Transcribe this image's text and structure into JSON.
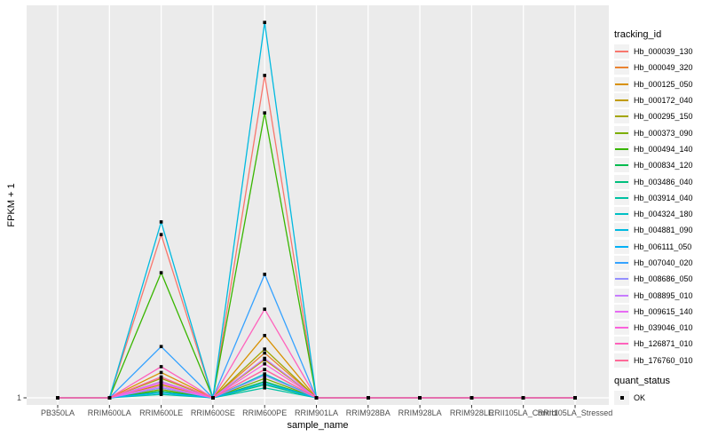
{
  "figure": {
    "background": "#FFFFFF",
    "panel_background": "#EBEBEB",
    "gridline_color": "#FFFFFF",
    "tick_color": "#333333",
    "axis_text_color": "#4D4D4D",
    "point_color": "#000000"
  },
  "axes": {
    "x_title": "sample_name",
    "y_title": "FPKM + 1",
    "y_tick_labels": [
      "1"
    ],
    "x_tick_labels": [
      "PB350LA",
      "RRIM600LA",
      "RRIM600LE",
      "RRIM600SE",
      "RRIM600PE",
      "RRIM901LA",
      "RRIM928BA",
      "RRIM928LA",
      "RRIM928LE",
      "RRII105LA_Control",
      "RRII105LA_Stressed"
    ]
  },
  "legend": {
    "tracking_title": "tracking_id",
    "quant_title": "quant_status",
    "quant_items": [
      {
        "label": "OK",
        "marker": "black-square"
      }
    ],
    "key_fill": "#F2F2F2"
  },
  "chart_data": {
    "type": "line",
    "title": "",
    "xlabel": "sample_name",
    "ylabel": "FPKM + 1",
    "yscale": "log10",
    "ytick_values": [
      1
    ],
    "ylim_log10": [
      0,
      1
    ],
    "grid": "major-white-on-gray",
    "legend_position": "right",
    "point_marker": {
      "shape": "square",
      "color": "#000000",
      "meaning": "quant_status OK"
    },
    "categories": [
      "PB350LA",
      "RRIM600LA",
      "RRIM600LE",
      "RRIM600SE",
      "RRIM600PE",
      "RRIM901LA",
      "RRIM928BA",
      "RRIM928LA",
      "RRIM928LE",
      "RRII105LA_Control",
      "RRII105LA_Stressed"
    ],
    "series": [
      {
        "name": "Hb_000039_130",
        "color": "#F8766D",
        "values": [
          1,
          1,
          2.6,
          1,
          6.6,
          1,
          1,
          1,
          1,
          1,
          1
        ]
      },
      {
        "name": "Hb_000049_320",
        "color": "#EA8331",
        "values": [
          1,
          1,
          1.1,
          1,
          1.3,
          1,
          1,
          1,
          1,
          1,
          1
        ]
      },
      {
        "name": "Hb_000125_050",
        "color": "#D89000",
        "values": [
          1,
          1,
          1.16,
          1,
          1.44,
          1,
          1,
          1,
          1,
          1,
          1
        ]
      },
      {
        "name": "Hb_000172_040",
        "color": "#C09B00",
        "values": [
          1,
          1,
          1.08,
          1,
          1.25,
          1,
          1,
          1,
          1,
          1,
          1
        ]
      },
      {
        "name": "Hb_000295_150",
        "color": "#A3A500",
        "values": [
          1,
          1,
          1.12,
          1,
          1.33,
          1,
          1,
          1,
          1,
          1,
          1
        ]
      },
      {
        "name": "Hb_000373_090",
        "color": "#7CAE00",
        "values": [
          1,
          1,
          1.05,
          1,
          1.12,
          1,
          1,
          1,
          1,
          1,
          1
        ]
      },
      {
        "name": "Hb_000494_140",
        "color": "#39B600",
        "values": [
          1,
          1,
          2.08,
          1,
          5.3,
          1,
          1,
          1,
          1,
          1,
          1
        ]
      },
      {
        "name": "Hb_000834_120",
        "color": "#00BB4E",
        "values": [
          1,
          1,
          1.04,
          1,
          1.1,
          1,
          1,
          1,
          1,
          1,
          1
        ]
      },
      {
        "name": "Hb_003486_040",
        "color": "#00BF7D",
        "values": [
          1,
          1,
          1.03,
          1,
          1.08,
          1,
          1,
          1,
          1,
          1,
          1
        ]
      },
      {
        "name": "Hb_003914_040",
        "color": "#00C1A3",
        "values": [
          1,
          1,
          1.02,
          1,
          1.06,
          1,
          1,
          1,
          1,
          1,
          1
        ]
      },
      {
        "name": "Hb_004324_180",
        "color": "#00BFC4",
        "values": [
          1,
          1,
          1.06,
          1,
          1.15,
          1,
          1,
          1,
          1,
          1,
          1
        ]
      },
      {
        "name": "Hb_004881_090",
        "color": "#00BAE0",
        "values": [
          1,
          1,
          2.8,
          1,
          9.0,
          1,
          1,
          1,
          1,
          1,
          1
        ]
      },
      {
        "name": "Hb_006111_050",
        "color": "#00B0F6",
        "values": [
          1,
          1,
          1.03,
          1,
          1.09,
          1,
          1,
          1,
          1,
          1,
          1
        ]
      },
      {
        "name": "Hb_007040_020",
        "color": "#35A2FF",
        "values": [
          1,
          1,
          1.35,
          1,
          2.06,
          1,
          1,
          1,
          1,
          1,
          1
        ]
      },
      {
        "name": "Hb_008686_050",
        "color": "#9590FF",
        "values": [
          1,
          1,
          1.06,
          1,
          1.14,
          1,
          1,
          1,
          1,
          1,
          1
        ]
      },
      {
        "name": "Hb_008895_010",
        "color": "#C77CFF",
        "values": [
          1,
          1,
          1.1,
          1,
          1.26,
          1,
          1,
          1,
          1,
          1,
          1
        ]
      },
      {
        "name": "Hb_009615_140",
        "color": "#E76BF3",
        "values": [
          1,
          1,
          1.07,
          1,
          1.18,
          1,
          1,
          1,
          1,
          1,
          1
        ]
      },
      {
        "name": "Hb_039046_010",
        "color": "#FA62DB",
        "values": [
          1,
          1,
          1.09,
          1,
          1.22,
          1,
          1,
          1,
          1,
          1,
          1
        ]
      },
      {
        "name": "Hb_126871_010",
        "color": "#FF62BC",
        "values": [
          1,
          1,
          1.2,
          1,
          1.68,
          1,
          1,
          1,
          1,
          1,
          1
        ]
      },
      {
        "name": "Hb_176760_010",
        "color": "#FF6A98",
        "values": [
          1,
          1,
          1.13,
          1,
          1.18,
          1,
          1,
          1,
          1,
          1,
          1
        ]
      }
    ]
  }
}
